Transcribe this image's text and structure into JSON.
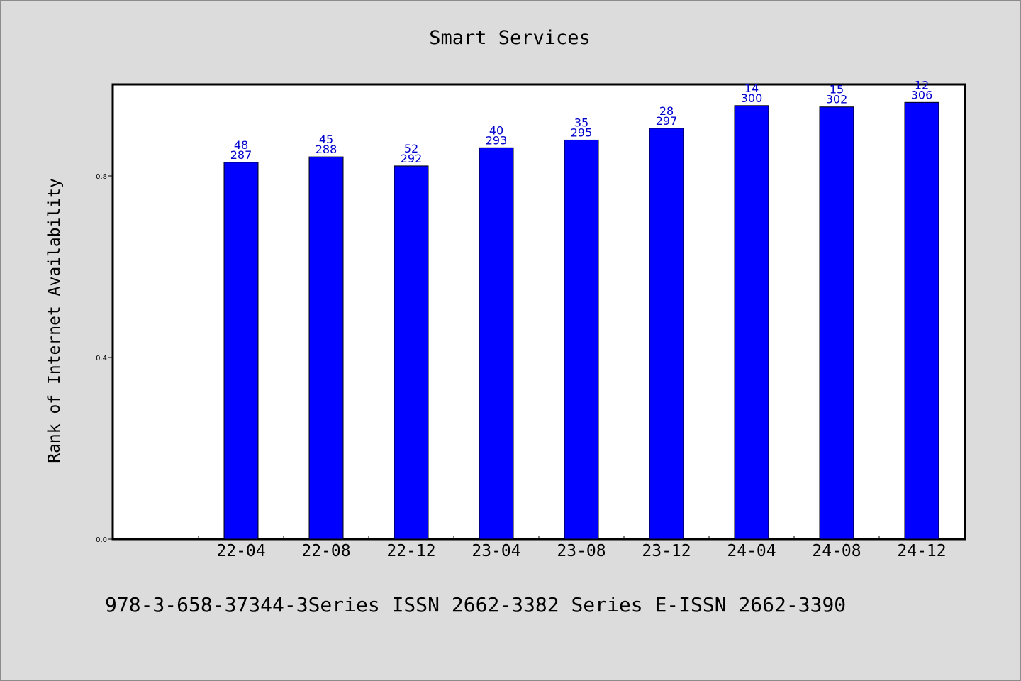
{
  "chart_data": {
    "type": "bar",
    "title": "Smart Services",
    "xlabel": "",
    "ylabel": "Rank of Internet Availability",
    "categories": [
      "22-04",
      "22-08",
      "22-12",
      "23-04",
      "23-08",
      "23-12",
      "24-04",
      "24-08",
      "24-12"
    ],
    "values": [
      0.83,
      0.842,
      0.822,
      0.862,
      0.879,
      0.905,
      0.955,
      0.952,
      0.962
    ],
    "labels_top": [
      "48",
      "45",
      "52",
      "40",
      "35",
      "28",
      "14",
      "15",
      "12"
    ],
    "labels_bottom": [
      "287",
      "288",
      "292",
      "293",
      "295",
      "297",
      "300",
      "302",
      "306"
    ],
    "yticks": [
      0.0,
      0.4,
      0.8
    ],
    "ytick_labels": [
      "0.0",
      "0.4",
      "0.8"
    ],
    "ylim": [
      0,
      1.0
    ],
    "grid": false,
    "legend": "none"
  },
  "footer": "978-3-658-37344-3Series ISSN 2662-3382 Series E-ISSN 2662-3390",
  "colors": {
    "background": "#dcdcdc",
    "plot_area": "#ffffff",
    "bar_fill": "#0000ff",
    "bar_stroke": "#000000",
    "data_label": "#0000cc"
  }
}
